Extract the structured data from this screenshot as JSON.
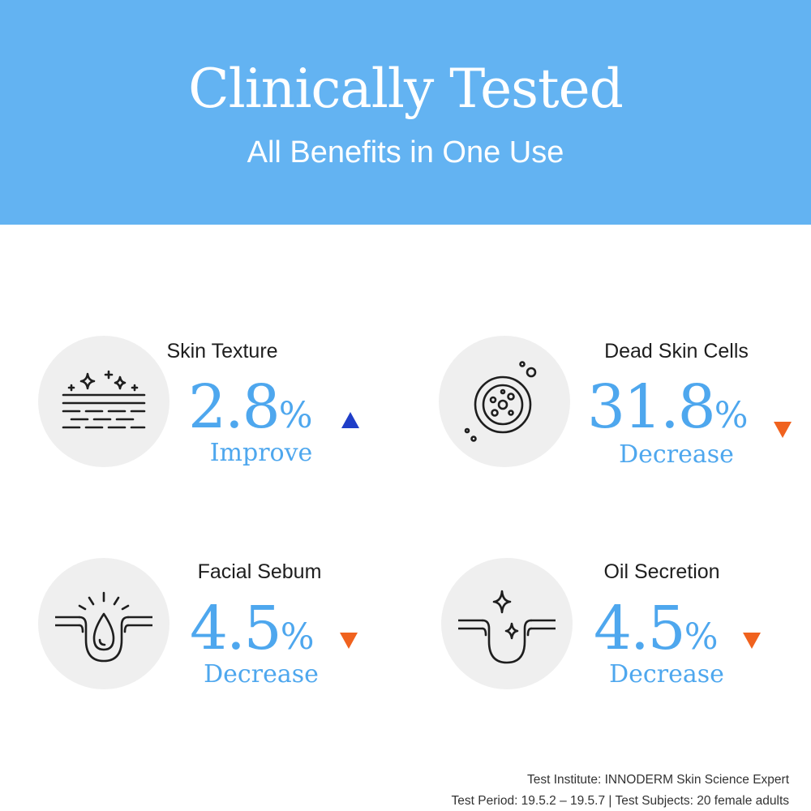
{
  "header": {
    "title": "Clinically Tested",
    "subtitle": "All Benefits in One Use"
  },
  "colors": {
    "header_background": "#63b3f2",
    "value_text": "#4ea7ee",
    "increase_arrow": "#1f3ec8",
    "decrease_arrow": "#f0621e",
    "icon_circle": "#efefef"
  },
  "metrics": [
    {
      "label": "Skin Texture",
      "value": "2.8",
      "unit": "%",
      "direction": "Improve",
      "trend": "up",
      "icon": "skin-texture-sparkle-icon"
    },
    {
      "label": "Dead Skin Cells",
      "value": "31.8",
      "unit": "%",
      "direction": "Decrease",
      "trend": "down",
      "icon": "dead-skin-cells-icon"
    },
    {
      "label": "Facial Sebum",
      "value": "4.5",
      "unit": "%",
      "direction": "Decrease",
      "trend": "down",
      "icon": "sebum-droplet-pore-icon"
    },
    {
      "label": "Oil Secretion",
      "value": "4.5",
      "unit": "%",
      "direction": "Decrease",
      "trend": "down",
      "icon": "oil-pore-sparkle-icon"
    }
  ],
  "footer": {
    "institute": "Test Institute: INNODERM Skin Science Expert",
    "period": "Test Period: 19.5.2 – 19.5.7 | Test Subjects: 20 female adults"
  }
}
